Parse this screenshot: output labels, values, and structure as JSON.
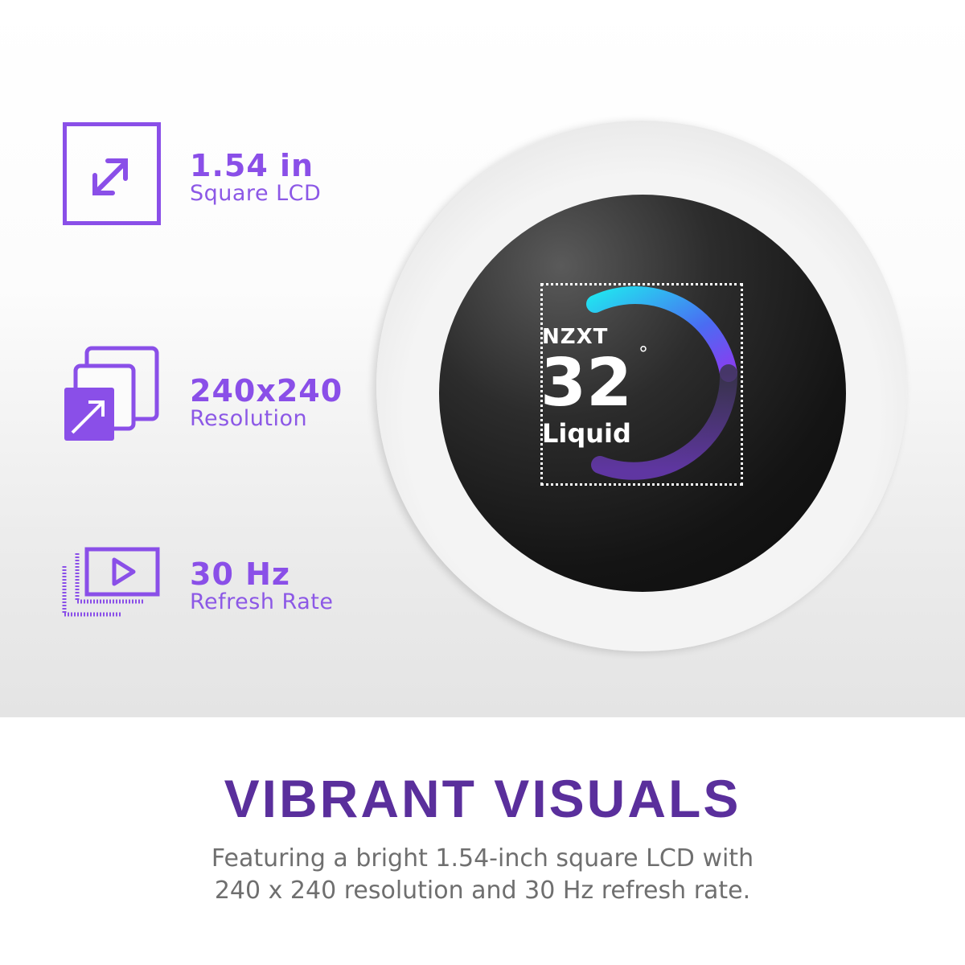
{
  "features": [
    {
      "icon": "resize-diagonal-icon",
      "value": "1.54 in",
      "label": "Square LCD"
    },
    {
      "icon": "resolution-layers-icon",
      "value": "240x240",
      "label": "Resolution"
    },
    {
      "icon": "play-refresh-icon",
      "value": "30 Hz",
      "label": "Refresh Rate"
    }
  ],
  "display": {
    "brand": "NZXT",
    "temperature": "32",
    "degree": "°",
    "sensor": "Liquid"
  },
  "heading": "VIBRANT VISUALS",
  "description_line1": "Featuring a bright 1.54-inch square LCD with",
  "description_line2": "240 x 240 resolution and 30 Hz refresh rate.",
  "colors": {
    "accent": "#8a4fe8",
    "heading": "#5a2f9c",
    "arc_start": "#22e0f0",
    "arc_end": "#8a3cf0"
  }
}
